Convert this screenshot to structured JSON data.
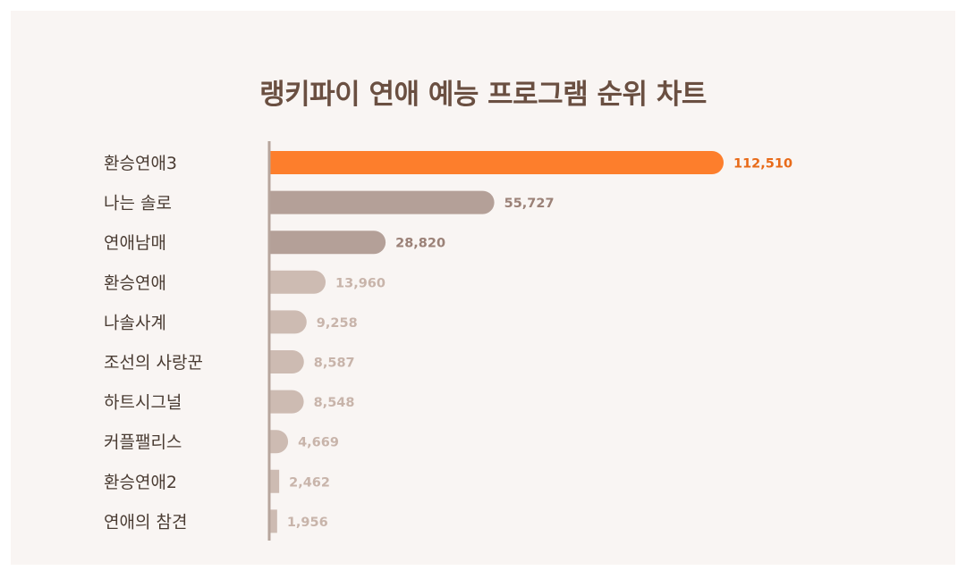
{
  "chart_data": {
    "type": "bar",
    "orientation": "horizontal",
    "title": "랭키파이 연애 예능 프로그램 순위 차트",
    "categories": [
      "환승연애3",
      "나는 솔로",
      "연애남매",
      "환승연애",
      "나솔사계",
      "조선의 사랑꾼",
      "하트시그널",
      "커플팰리스",
      "환승연애2",
      "연애의 참견"
    ],
    "values": [
      112510,
      55727,
      28820,
      13960,
      9258,
      8587,
      8548,
      4669,
      2462,
      1956
    ],
    "value_labels": [
      "112,510",
      "55,727",
      "28,820",
      "13,960",
      "9,258",
      "8,587",
      "8,548",
      "4,669",
      "2,462",
      "1,956"
    ],
    "xlim": [
      0,
      112510
    ],
    "grid": false,
    "legend": "none",
    "colors": {
      "highlight_bar": "#fd7e2c",
      "highlight_text": "#e86a18",
      "bar_shades": [
        "#fd7e2c",
        "#b4a098",
        "#b4a098",
        "#cdbbb2",
        "#cdbbb2",
        "#cdbbb2",
        "#cdbbb2",
        "#cdbbb2",
        "#cdbbb2",
        "#cdbbb2"
      ],
      "text_shades": [
        "#e86a18",
        "#9b8177",
        "#9b8177",
        "#c8b4aa",
        "#c8b4aa",
        "#c8b4aa",
        "#c8b4aa",
        "#c8b4aa",
        "#c8b4aa",
        "#c8b4aa"
      ],
      "axis": "#b6a59c",
      "title": "#6a4f41",
      "background": "#f9f5f3"
    }
  }
}
